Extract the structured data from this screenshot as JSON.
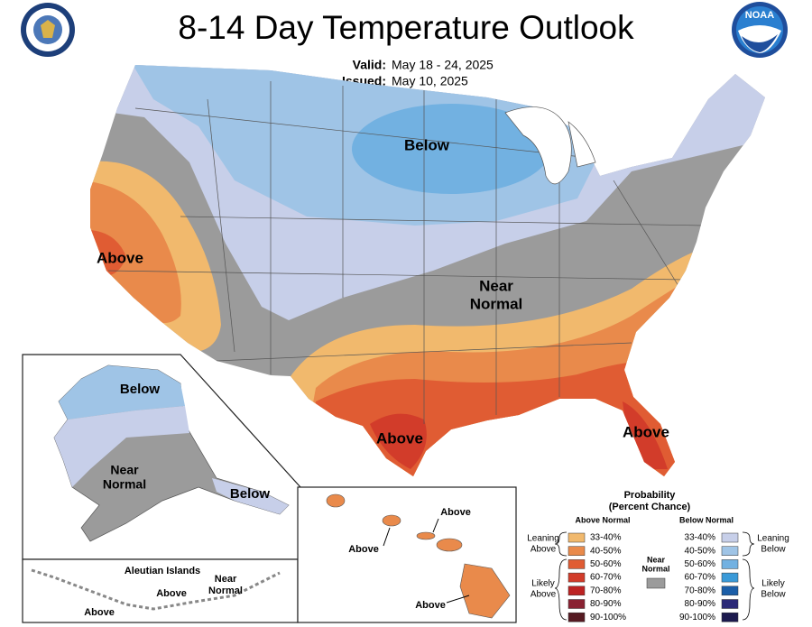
{
  "header": {
    "title": "8-14 Day Temperature Outlook",
    "valid_label": "Valid:",
    "valid_dates": "May 18 - 24, 2025",
    "issued_label": "Issued:",
    "issued_date": "May 10, 2025",
    "noaa": "NOAA"
  },
  "conus": {
    "below": "Below",
    "above_west": "Above",
    "near_normal": [
      "Near",
      "Normal"
    ],
    "above_texas": "Above",
    "above_florida": "Above"
  },
  "alaska": {
    "below_north": "Below",
    "near_normal": [
      "Near",
      "Normal"
    ],
    "below_southeast": "Below"
  },
  "aleutians": {
    "title": "Aleutian Islands",
    "near_normal": [
      "Near",
      "Normal"
    ],
    "above_east": "Above",
    "above_west": "Above"
  },
  "hawaii": {
    "above_kauai": "Above",
    "above_oahu": "Above",
    "above_big_island": "Above"
  },
  "legend": {
    "title": "Probability",
    "subtitle": "(Percent Chance)",
    "above_header": "Above Normal",
    "below_header": "Below Normal",
    "near_normal": [
      "Near",
      "Normal"
    ],
    "near_normal_color": "#9b9b9b",
    "leaning_above": [
      "Leaning",
      "Above"
    ],
    "likely_above": [
      "Likely",
      "Above"
    ],
    "leaning_below": [
      "Leaning",
      "Below"
    ],
    "likely_below": [
      "Likely",
      "Below"
    ],
    "above": [
      {
        "label": "33-40%",
        "color": "#f1b96d"
      },
      {
        "label": "40-50%",
        "color": "#e98a4b"
      },
      {
        "label": "50-60%",
        "color": "#e05c33"
      },
      {
        "label": "60-70%",
        "color": "#d23c2a"
      },
      {
        "label": "70-80%",
        "color": "#bd2323"
      },
      {
        "label": "80-90%",
        "color": "#8a2232"
      },
      {
        "label": "90-100%",
        "color": "#561a22"
      }
    ],
    "below": [
      {
        "label": "33-40%",
        "color": "#c7cfe9"
      },
      {
        "label": "40-50%",
        "color": "#9fc4e6"
      },
      {
        "label": "50-60%",
        "color": "#72b1e1"
      },
      {
        "label": "60-70%",
        "color": "#3a9ad8"
      },
      {
        "label": "70-80%",
        "color": "#1b5ea8"
      },
      {
        "label": "80-90%",
        "color": "#2c2a78"
      },
      {
        "label": "90-100%",
        "color": "#1c1a4e"
      }
    ]
  }
}
